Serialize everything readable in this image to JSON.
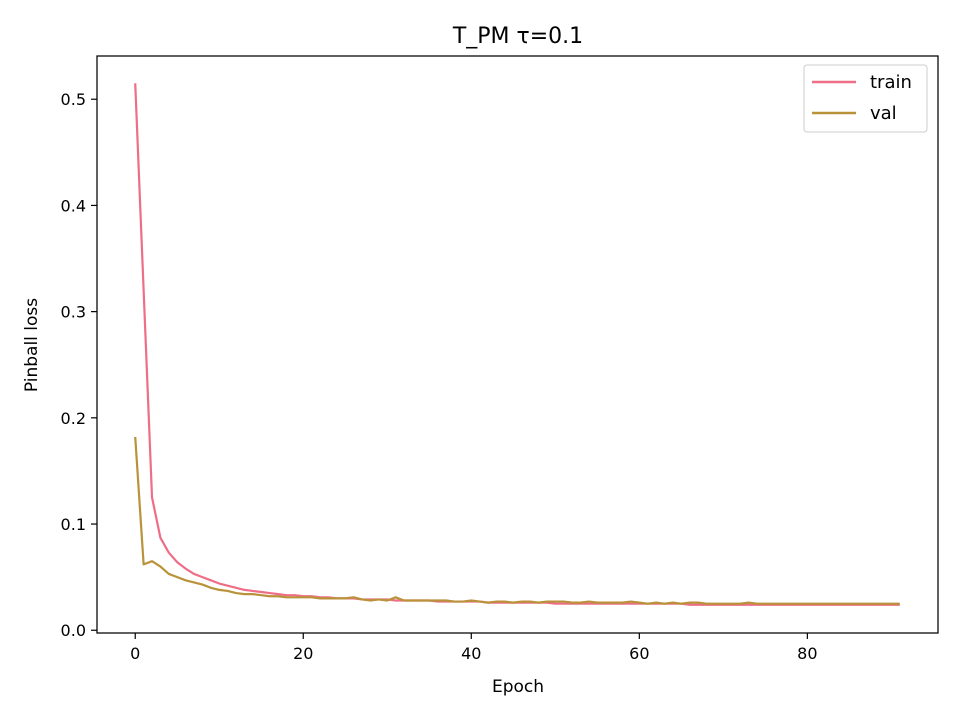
{
  "chart_data": {
    "type": "line",
    "title": "T_PM  τ=0.1",
    "xlabel": "Epoch",
    "ylabel": "Pinball loss",
    "xlim": [
      -4.55,
      95.55
    ],
    "ylim": [
      -0.0026,
      0.5407
    ],
    "xticks": [
      0,
      20,
      40,
      60,
      80
    ],
    "yticks": [
      0.0,
      0.1,
      0.2,
      0.3,
      0.4,
      0.5
    ],
    "ytick_labels": [
      "0.0",
      "0.1",
      "0.2",
      "0.3",
      "0.4",
      "0.5"
    ],
    "grid": false,
    "legend": "top-right",
    "series": [
      {
        "name": "train",
        "color": "#ee6e87",
        "x": [
          0,
          1,
          2,
          3,
          4,
          5,
          6,
          7,
          8,
          9,
          10,
          11,
          12,
          13,
          14,
          15,
          16,
          17,
          18,
          19,
          20,
          21,
          22,
          23,
          24,
          25,
          26,
          27,
          28,
          29,
          30,
          31,
          32,
          33,
          34,
          35,
          36,
          37,
          38,
          39,
          40,
          41,
          42,
          43,
          44,
          45,
          46,
          47,
          48,
          49,
          50,
          51,
          52,
          53,
          54,
          55,
          56,
          57,
          58,
          59,
          60,
          61,
          62,
          63,
          64,
          65,
          66,
          67,
          68,
          69,
          70,
          71,
          72,
          73,
          74,
          75,
          76,
          77,
          78,
          79,
          80,
          81,
          82,
          83,
          84,
          85,
          86,
          87,
          88,
          89,
          90,
          91
        ],
        "y": [
          0.515,
          0.32,
          0.125,
          0.087,
          0.073,
          0.064,
          0.058,
          0.053,
          0.05,
          0.047,
          0.044,
          0.042,
          0.04,
          0.038,
          0.037,
          0.036,
          0.035,
          0.034,
          0.033,
          0.033,
          0.032,
          0.032,
          0.031,
          0.031,
          0.03,
          0.03,
          0.03,
          0.029,
          0.029,
          0.029,
          0.029,
          0.028,
          0.028,
          0.028,
          0.028,
          0.028,
          0.027,
          0.027,
          0.027,
          0.027,
          0.027,
          0.027,
          0.026,
          0.026,
          0.026,
          0.026,
          0.026,
          0.026,
          0.026,
          0.026,
          0.025,
          0.025,
          0.025,
          0.025,
          0.025,
          0.025,
          0.025,
          0.025,
          0.025,
          0.025,
          0.025,
          0.025,
          0.025,
          0.025,
          0.025,
          0.025,
          0.024,
          0.024,
          0.024,
          0.024,
          0.024,
          0.024,
          0.024,
          0.024,
          0.024,
          0.024,
          0.024,
          0.024,
          0.024,
          0.024,
          0.024,
          0.024,
          0.024,
          0.024,
          0.024,
          0.024,
          0.024,
          0.024,
          0.024,
          0.024,
          0.024,
          0.024
        ]
      },
      {
        "name": "val",
        "color": "#b9923a",
        "x": [
          0,
          1,
          2,
          3,
          4,
          5,
          6,
          7,
          8,
          9,
          10,
          11,
          12,
          13,
          14,
          15,
          16,
          17,
          18,
          19,
          20,
          21,
          22,
          23,
          24,
          25,
          26,
          27,
          28,
          29,
          30,
          31,
          32,
          33,
          34,
          35,
          36,
          37,
          38,
          39,
          40,
          41,
          42,
          43,
          44,
          45,
          46,
          47,
          48,
          49,
          50,
          51,
          52,
          53,
          54,
          55,
          56,
          57,
          58,
          59,
          60,
          61,
          62,
          63,
          64,
          65,
          66,
          67,
          68,
          69,
          70,
          71,
          72,
          73,
          74,
          75,
          76,
          77,
          78,
          79,
          80,
          81,
          82,
          83,
          84,
          85,
          86,
          87,
          88,
          89,
          90,
          91
        ],
        "y": [
          0.182,
          0.062,
          0.065,
          0.06,
          0.053,
          0.05,
          0.047,
          0.045,
          0.043,
          0.04,
          0.038,
          0.037,
          0.035,
          0.034,
          0.034,
          0.033,
          0.032,
          0.032,
          0.031,
          0.031,
          0.031,
          0.031,
          0.03,
          0.03,
          0.03,
          0.03,
          0.031,
          0.029,
          0.028,
          0.029,
          0.028,
          0.031,
          0.028,
          0.028,
          0.028,
          0.028,
          0.028,
          0.028,
          0.027,
          0.027,
          0.028,
          0.027,
          0.026,
          0.027,
          0.027,
          0.026,
          0.027,
          0.027,
          0.026,
          0.027,
          0.027,
          0.027,
          0.026,
          0.026,
          0.027,
          0.026,
          0.026,
          0.026,
          0.026,
          0.027,
          0.026,
          0.025,
          0.026,
          0.025,
          0.026,
          0.025,
          0.026,
          0.026,
          0.025,
          0.025,
          0.025,
          0.025,
          0.025,
          0.026,
          0.025,
          0.025,
          0.025,
          0.025,
          0.025,
          0.025,
          0.025,
          0.025,
          0.025,
          0.025,
          0.025,
          0.025,
          0.025,
          0.025,
          0.025,
          0.025,
          0.025,
          0.025
        ]
      }
    ]
  }
}
